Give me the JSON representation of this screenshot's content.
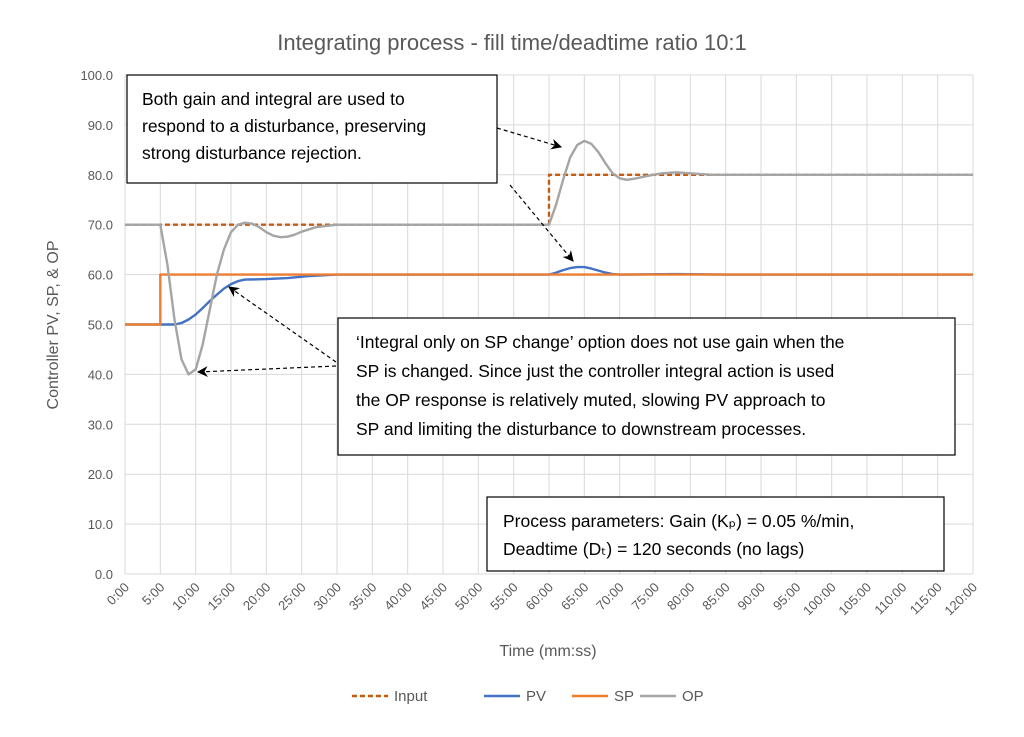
{
  "chart_data": {
    "type": "line",
    "title": "Integrating process - fill time/deadtime ratio 10:1",
    "xlabel": "Time (mm:ss)",
    "ylabel": "Controller PV, SP, & OP",
    "ylim": [
      0,
      100
    ],
    "xlim": [
      0,
      120
    ],
    "x_unit": "minutes",
    "grid": true,
    "legend_position": "bottom",
    "y_ticks": [
      "0.0",
      "10.0",
      "20.0",
      "30.0",
      "40.0",
      "50.0",
      "60.0",
      "70.0",
      "80.0",
      "90.0",
      "100.0"
    ],
    "x_ticks": [
      "0:00",
      "5:00",
      "10:00",
      "15:00",
      "20:00",
      "25:00",
      "30:00",
      "35:00",
      "40:00",
      "45:00",
      "50:00",
      "55:00",
      "60:00",
      "65:00",
      "70:00",
      "75:00",
      "80:00",
      "85:00",
      "90:00",
      "95:00",
      "100:00",
      "105:00",
      "110:00",
      "115:00",
      "120:00"
    ],
    "series": [
      {
        "name": "Input",
        "color": "#C55A11",
        "dashed": true,
        "points": [
          [
            0,
            70
          ],
          [
            60,
            70
          ],
          [
            60,
            80
          ],
          [
            120,
            80
          ]
        ]
      },
      {
        "name": "PV",
        "color": "#4472C4",
        "dashed": false,
        "points": [
          [
            0,
            50
          ],
          [
            7,
            50
          ],
          [
            8,
            50.3
          ],
          [
            9,
            51
          ],
          [
            10,
            52
          ],
          [
            11,
            53.3
          ],
          [
            12,
            54.7
          ],
          [
            13,
            56
          ],
          [
            14,
            57.2
          ],
          [
            15,
            58.1
          ],
          [
            16,
            58.7
          ],
          [
            17,
            59
          ],
          [
            20,
            59.1
          ],
          [
            23,
            59.3
          ],
          [
            26,
            59.7
          ],
          [
            30,
            60
          ],
          [
            60,
            60
          ],
          [
            61,
            60.4
          ],
          [
            62,
            60.9
          ],
          [
            63,
            61.3
          ],
          [
            64,
            61.5
          ],
          [
            65,
            61.5
          ],
          [
            66,
            61.2
          ],
          [
            67,
            60.8
          ],
          [
            68,
            60.4
          ],
          [
            69,
            60.1
          ],
          [
            70,
            60
          ],
          [
            78,
            60.1
          ],
          [
            85,
            60
          ],
          [
            120,
            60
          ]
        ]
      },
      {
        "name": "SP",
        "color": "#ED7D31",
        "dashed": false,
        "points": [
          [
            0,
            50
          ],
          [
            5,
            50
          ],
          [
            5,
            60
          ],
          [
            120,
            60
          ]
        ]
      },
      {
        "name": "OP",
        "color": "#A5A5A5",
        "dashed": false,
        "points": [
          [
            0,
            70
          ],
          [
            5,
            70
          ],
          [
            6,
            62
          ],
          [
            7,
            51
          ],
          [
            8,
            43
          ],
          [
            9,
            40
          ],
          [
            10,
            41
          ],
          [
            11,
            46
          ],
          [
            12,
            53
          ],
          [
            13,
            60
          ],
          [
            14,
            65
          ],
          [
            15,
            68.5
          ],
          [
            16,
            70
          ],
          [
            17,
            70.4
          ],
          [
            18,
            70.2
          ],
          [
            19,
            69.5
          ],
          [
            20,
            68.5
          ],
          [
            21,
            67.8
          ],
          [
            22,
            67.5
          ],
          [
            23,
            67.6
          ],
          [
            24,
            68
          ],
          [
            25,
            68.6
          ],
          [
            27,
            69.5
          ],
          [
            30,
            70
          ],
          [
            35,
            70
          ],
          [
            60,
            70
          ],
          [
            61,
            74
          ],
          [
            62,
            79
          ],
          [
            63,
            83.5
          ],
          [
            64,
            86
          ],
          [
            65,
            86.8
          ],
          [
            66,
            86.2
          ],
          [
            67,
            84.5
          ],
          [
            68,
            82.3
          ],
          [
            69,
            80.3
          ],
          [
            70,
            79.3
          ],
          [
            71,
            79
          ],
          [
            72,
            79.2
          ],
          [
            74,
            79.8
          ],
          [
            76,
            80.3
          ],
          [
            78,
            80.5
          ],
          [
            80,
            80.3
          ],
          [
            83,
            80
          ],
          [
            120,
            80
          ]
        ]
      }
    ],
    "annotations": [
      {
        "lines": [
          "Both gain and integral are used to",
          "respond to a disturbance, preserving",
          "strong disturbance rejection."
        ]
      },
      {
        "lines": [
          "‘Integral only on SP change’ option does not use gain when the",
          "SP is changed.  Since just the controller integral action is used",
          "the OP response is relatively muted, slowing PV approach to",
          "SP and limiting the disturbance to downstream processes."
        ]
      },
      {
        "lines": [
          "Process parameters:  Gain (Kₚ) = 0.05 %/min,",
          "Deadtime (Dₜ) = 120 seconds  (no lags)"
        ]
      }
    ]
  }
}
